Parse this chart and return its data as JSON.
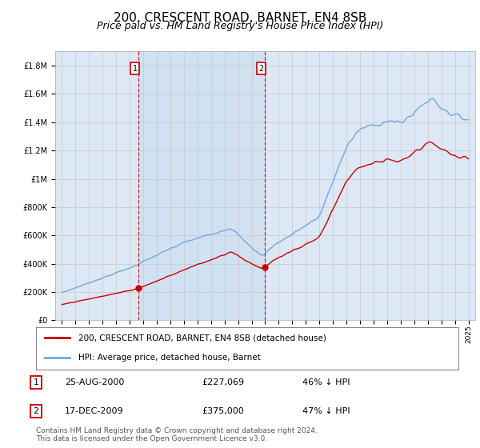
{
  "title": "200, CRESCENT ROAD, BARNET, EN4 8SB",
  "subtitle": "Price paid vs. HM Land Registry's House Price Index (HPI)",
  "footer": "Contains HM Land Registry data © Crown copyright and database right 2024.\nThis data is licensed under the Open Government Licence v3.0.",
  "legend_line1": "200, CRESCENT ROAD, BARNET, EN4 8SB (detached house)",
  "legend_line2": "HPI: Average price, detached house, Barnet",
  "table": [
    {
      "num": "1",
      "date": "25-AUG-2000",
      "price": "£227,069",
      "pct": "46% ↓ HPI"
    },
    {
      "num": "2",
      "date": "17-DEC-2009",
      "price": "£375,000",
      "pct": "47% ↓ HPI"
    }
  ],
  "vline1_x": 2000.646,
  "vline2_x": 2009.958,
  "marker1_x": 2000.646,
  "marker1_y": 227069,
  "marker2_x": 2009.958,
  "marker2_y": 375000,
  "ylim": [
    0,
    1900000
  ],
  "xlim_left": 1994.5,
  "xlim_right": 2025.5,
  "hpi_color": "#6fa8dc",
  "price_color": "#cc0000",
  "vline_color": "#cc0000",
  "grid_color": "#cccccc",
  "bg_color": "#dce8f5",
  "shade_color": "#dce8f5",
  "plot_bg": "#ffffff",
  "title_fontsize": 11,
  "subtitle_fontsize": 9,
  "axis_fontsize": 7
}
